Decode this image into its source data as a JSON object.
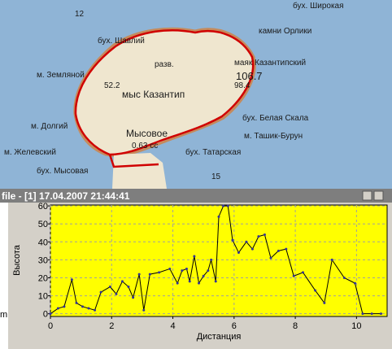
{
  "map": {
    "labels": [
      "бух. Широкая",
      "бух. Шавлий",
      "камни Орлики",
      "разв.",
      "маяк Казантипский",
      "106.7",
      "м. Земляной",
      "52.2",
      "мыс Казантип",
      "98.4",
      "м. Долгий",
      "Мысовое",
      "бух. Белая Скала",
      "0.63 сс",
      "м. Ташик-Бурун",
      "м. Желевский",
      "бух. Татарская",
      "бух. Мысовая",
      "12",
      "15"
    ]
  },
  "window": {
    "title": "file - [1] 17.04.2007 21:44:41",
    "side_label": "m"
  },
  "chart_data": {
    "type": "line",
    "x_label": "Дистанция",
    "y_label": "Высота",
    "color": "#000000",
    "grid": true,
    "x": [
      0,
      0.25,
      0.45,
      0.7,
      0.85,
      1.05,
      1.25,
      1.45,
      1.65,
      1.95,
      2.15,
      2.35,
      2.55,
      2.7,
      2.9,
      3.05,
      3.25,
      3.55,
      3.9,
      4.15,
      4.3,
      4.45,
      4.55,
      4.7,
      4.85,
      5.0,
      5.15,
      5.25,
      5.4,
      5.5,
      5.65,
      5.8,
      5.95,
      6.15,
      6.4,
      6.6,
      6.8,
      7.0,
      7.2,
      7.45,
      7.7,
      7.95,
      8.25,
      8.65,
      8.95,
      9.2,
      9.6,
      9.95,
      10.2,
      10.5,
      10.8
    ],
    "values": [
      0,
      3,
      4,
      19,
      6,
      4,
      3,
      2,
      12,
      15,
      11,
      18,
      15,
      9,
      22,
      2,
      22,
      23,
      25,
      17,
      24,
      25,
      18,
      32,
      17,
      21,
      24,
      30,
      18,
      54,
      60,
      60,
      41,
      34,
      40,
      36,
      43,
      44,
      31,
      35,
      36,
      21,
      23,
      13,
      6,
      30,
      20,
      17,
      0,
      0,
      0
    ],
    "xlim": [
      0,
      11
    ],
    "xticks": [
      0,
      2,
      4,
      6,
      8,
      10
    ],
    "ylim": [
      -1.5,
      60.5
    ],
    "yticks": [
      0,
      10,
      20,
      30,
      40,
      50,
      60
    ]
  }
}
